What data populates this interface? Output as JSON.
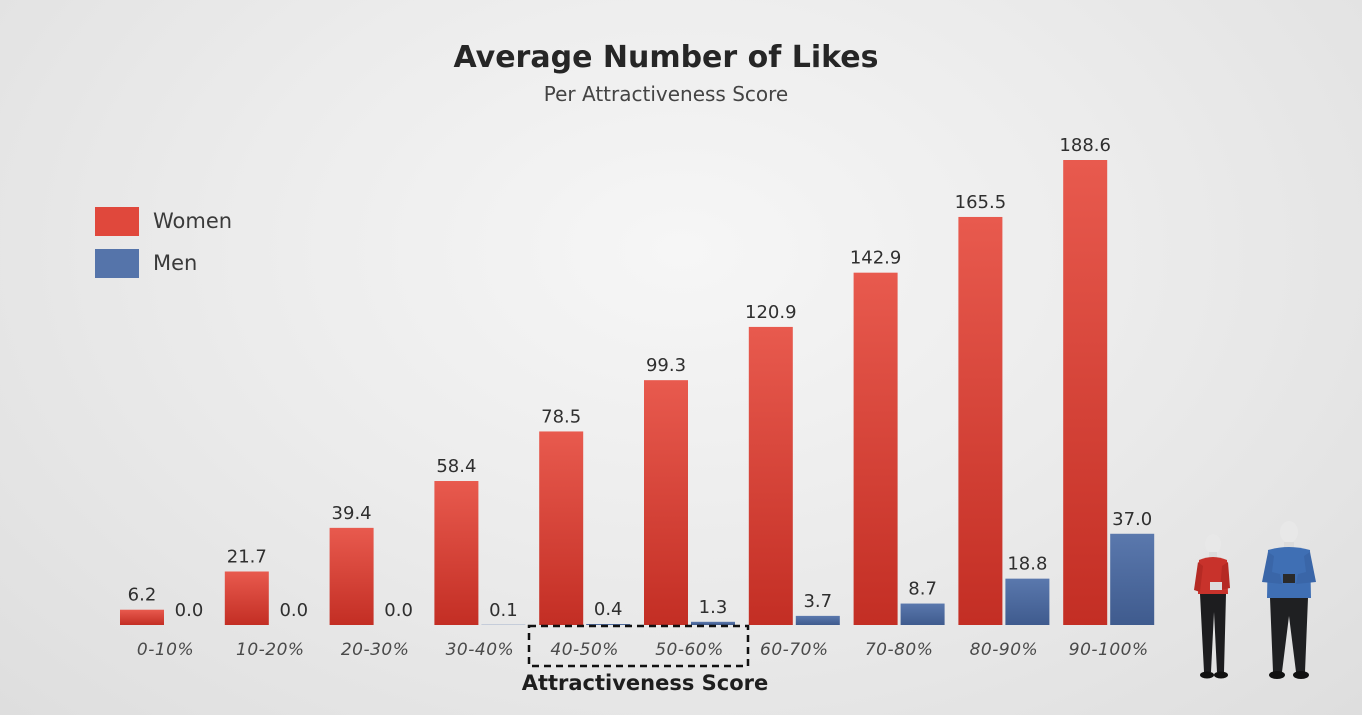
{
  "chart_data": {
    "type": "bar",
    "title": "Average Number of Likes",
    "subtitle": "Per Attractiveness Score",
    "xlabel": "Attractiveness Score",
    "ylabel": "",
    "ylim": [
      0,
      200
    ],
    "grid": false,
    "legend_placement": "top-left",
    "categories": [
      "0-10%",
      "10-20%",
      "20-30%",
      "30-40%",
      "40-50%",
      "50-60%",
      "60-70%",
      "70-80%",
      "80-90%",
      "90-100%"
    ],
    "series": [
      {
        "name": "Women",
        "color": "#d9382c",
        "values": [
          6.2,
          21.7,
          39.4,
          58.4,
          78.5,
          99.3,
          120.9,
          142.9,
          165.5,
          188.6
        ]
      },
      {
        "name": "Men",
        "color": "#4d6a9e",
        "values": [
          0.0,
          0.0,
          0.0,
          0.1,
          0.4,
          1.3,
          3.7,
          8.7,
          18.8,
          37.0
        ]
      }
    ],
    "highlighted_categories": [
      "40-50%",
      "50-60%"
    ]
  },
  "decorations": {
    "figure_left_icon": "woman-figure-icon",
    "figure_right_icon": "man-figure-icon"
  }
}
